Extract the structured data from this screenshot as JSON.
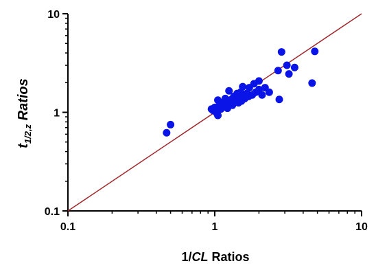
{
  "chart_data": {
    "type": "scatter",
    "title": "",
    "xlabel": {
      "prefix": "1/",
      "italic": "CL",
      "suffix": " Ratios"
    },
    "ylabel": {
      "main": "t",
      "subscript": "1/2,z",
      "suffix": " Ratios"
    },
    "x_scale": "log",
    "y_scale": "log",
    "xlim": [
      0.1,
      10
    ],
    "ylim": [
      0.1,
      10
    ],
    "x_ticks": [
      {
        "value": 0.1,
        "label": "0.1"
      },
      {
        "value": 1,
        "label": "1"
      },
      {
        "value": 10,
        "label": "10"
      }
    ],
    "y_ticks": [
      {
        "value": 0.1,
        "label": "0.1"
      },
      {
        "value": 1,
        "label": "1"
      },
      {
        "value": 10,
        "label": "10"
      }
    ],
    "grid": false,
    "point_color": "#0a14e6",
    "line_color": "#a0282d",
    "reference_line": {
      "x": [
        0.1,
        10
      ],
      "y": [
        0.1,
        10
      ]
    },
    "points": [
      {
        "x": 0.47,
        "y": 0.62
      },
      {
        "x": 0.5,
        "y": 0.75
      },
      {
        "x": 0.95,
        "y": 1.08
      },
      {
        "x": 0.97,
        "y": 1.05
      },
      {
        "x": 1.0,
        "y": 1.12
      },
      {
        "x": 1.02,
        "y": 1.0
      },
      {
        "x": 1.05,
        "y": 0.93
      },
      {
        "x": 1.05,
        "y": 1.33
      },
      {
        "x": 1.08,
        "y": 1.2
      },
      {
        "x": 1.1,
        "y": 1.08
      },
      {
        "x": 1.12,
        "y": 1.25
      },
      {
        "x": 1.15,
        "y": 1.15
      },
      {
        "x": 1.18,
        "y": 1.38
      },
      {
        "x": 1.2,
        "y": 1.22
      },
      {
        "x": 1.22,
        "y": 1.1
      },
      {
        "x": 1.25,
        "y": 1.28
      },
      {
        "x": 1.25,
        "y": 1.65
      },
      {
        "x": 1.3,
        "y": 1.35
      },
      {
        "x": 1.32,
        "y": 1.18
      },
      {
        "x": 1.35,
        "y": 1.45
      },
      {
        "x": 1.4,
        "y": 1.3
      },
      {
        "x": 1.42,
        "y": 1.55
      },
      {
        "x": 1.45,
        "y": 1.25
      },
      {
        "x": 1.48,
        "y": 1.4
      },
      {
        "x": 1.5,
        "y": 1.6
      },
      {
        "x": 1.52,
        "y": 1.3
      },
      {
        "x": 1.55,
        "y": 1.5
      },
      {
        "x": 1.55,
        "y": 1.82
      },
      {
        "x": 1.6,
        "y": 1.38
      },
      {
        "x": 1.65,
        "y": 1.55
      },
      {
        "x": 1.7,
        "y": 1.45
      },
      {
        "x": 1.72,
        "y": 1.78
      },
      {
        "x": 1.8,
        "y": 1.5
      },
      {
        "x": 1.85,
        "y": 1.95
      },
      {
        "x": 1.9,
        "y": 1.6
      },
      {
        "x": 2.0,
        "y": 1.7
      },
      {
        "x": 2.0,
        "y": 2.08
      },
      {
        "x": 2.1,
        "y": 1.5
      },
      {
        "x": 2.2,
        "y": 1.78
      },
      {
        "x": 2.35,
        "y": 1.6
      },
      {
        "x": 2.7,
        "y": 2.65
      },
      {
        "x": 2.75,
        "y": 1.35
      },
      {
        "x": 2.85,
        "y": 4.1
      },
      {
        "x": 3.1,
        "y": 3.0
      },
      {
        "x": 3.2,
        "y": 2.45
      },
      {
        "x": 3.5,
        "y": 2.85
      },
      {
        "x": 4.6,
        "y": 1.98
      },
      {
        "x": 4.8,
        "y": 4.15
      }
    ]
  }
}
